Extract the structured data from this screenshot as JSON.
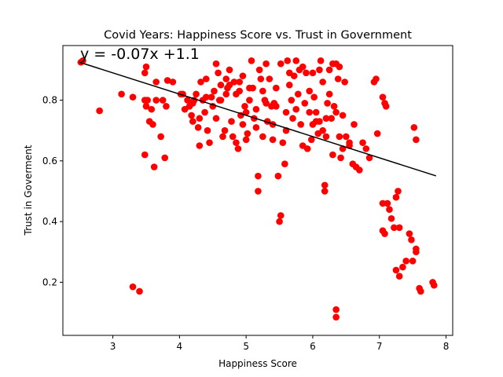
{
  "chart_data": {
    "type": "scatter",
    "title": "Covid Years: Happiness Score vs. Trust in Government",
    "xlabel": "Happiness Score",
    "ylabel": "Trust in Goverment",
    "xlim": [
      2.25,
      8.1
    ],
    "ylim": [
      0.025,
      0.98
    ],
    "xticks": [
      3,
      4,
      5,
      6,
      7,
      8
    ],
    "yticks": [
      0.2,
      0.4,
      0.6,
      0.8
    ],
    "grid": false,
    "marker_color": "#ff0000",
    "line_color": "#000000",
    "regression": {
      "slope": -0.07,
      "intercept": 1.1,
      "x_range": [
        2.5,
        7.85
      ]
    },
    "annotation": "y = -0.07x +1.1",
    "points": [
      [
        2.52,
        0.925
      ],
      [
        2.55,
        0.93
      ],
      [
        2.8,
        0.765
      ],
      [
        3.13,
        0.82
      ],
      [
        3.3,
        0.81
      ],
      [
        3.3,
        0.185
      ],
      [
        3.4,
        0.17
      ],
      [
        3.48,
        0.89
      ],
      [
        3.5,
        0.91
      ],
      [
        3.48,
        0.8
      ],
      [
        3.52,
        0.8
      ],
      [
        3.5,
        0.78
      ],
      [
        3.48,
        0.62
      ],
      [
        3.55,
        0.73
      ],
      [
        3.58,
        0.77
      ],
      [
        3.6,
        0.72
      ],
      [
        3.62,
        0.58
      ],
      [
        3.65,
        0.86
      ],
      [
        3.65,
        0.8
      ],
      [
        3.72,
        0.68
      ],
      [
        3.75,
        0.8
      ],
      [
        3.78,
        0.61
      ],
      [
        3.8,
        0.78
      ],
      [
        3.82,
        0.865
      ],
      [
        3.9,
        0.86
      ],
      [
        4.05,
        0.82
      ],
      [
        4.08,
        0.77
      ],
      [
        4.12,
        0.8
      ],
      [
        4.15,
        0.78
      ],
      [
        4.18,
        0.75
      ],
      [
        4.2,
        0.73
      ],
      [
        4.22,
        0.8
      ],
      [
        4.25,
        0.82
      ],
      [
        4.28,
        0.71
      ],
      [
        4.3,
        0.65
      ],
      [
        4.32,
        0.86
      ],
      [
        4.35,
        0.8
      ],
      [
        4.38,
        0.76
      ],
      [
        4.4,
        0.87
      ],
      [
        4.42,
        0.7
      ],
      [
        4.45,
        0.66
      ],
      [
        4.48,
        0.81
      ],
      [
        4.5,
        0.78
      ],
      [
        4.52,
        0.83
      ],
      [
        4.55,
        0.92
      ],
      [
        4.58,
        0.89
      ],
      [
        4.6,
        0.8
      ],
      [
        4.62,
        0.85
      ],
      [
        4.65,
        0.68
      ],
      [
        4.68,
        0.7
      ],
      [
        4.7,
        0.87
      ],
      [
        4.72,
        0.84
      ],
      [
        4.75,
        0.9
      ],
      [
        4.78,
        0.73
      ],
      [
        4.8,
        0.68
      ],
      [
        4.82,
        0.86
      ],
      [
        4.85,
        0.66
      ],
      [
        4.88,
        0.64
      ],
      [
        4.9,
        0.83
      ],
      [
        4.92,
        0.75
      ],
      [
        4.95,
        0.88
      ],
      [
        4.98,
        0.78
      ],
      [
        5.0,
        0.67
      ],
      [
        5.02,
        0.69
      ],
      [
        5.05,
        0.8
      ],
      [
        5.08,
        0.93
      ],
      [
        5.1,
        0.84
      ],
      [
        5.12,
        0.74
      ],
      [
        5.15,
        0.71
      ],
      [
        5.18,
        0.5
      ],
      [
        5.18,
        0.55
      ],
      [
        5.2,
        0.9
      ],
      [
        5.22,
        0.87
      ],
      [
        5.25,
        0.83
      ],
      [
        5.28,
        0.8
      ],
      [
        5.3,
        0.92
      ],
      [
        5.32,
        0.73
      ],
      [
        5.35,
        0.87
      ],
      [
        5.38,
        0.78
      ],
      [
        5.4,
        0.72
      ],
      [
        5.42,
        0.79
      ],
      [
        5.45,
        0.84
      ],
      [
        5.48,
        0.55
      ],
      [
        5.5,
        0.4
      ],
      [
        5.52,
        0.42
      ],
      [
        5.52,
        0.92
      ],
      [
        5.55,
        0.66
      ],
      [
        5.58,
        0.59
      ],
      [
        5.6,
        0.7
      ],
      [
        5.62,
        0.93
      ],
      [
        5.65,
        0.85
      ],
      [
        5.68,
        0.8
      ],
      [
        5.7,
        0.74
      ],
      [
        5.72,
        0.88
      ],
      [
        5.75,
        0.93
      ],
      [
        5.78,
        0.82
      ],
      [
        5.8,
        0.9
      ],
      [
        5.82,
        0.72
      ],
      [
        5.85,
        0.65
      ],
      [
        5.88,
        0.79
      ],
      [
        5.9,
        0.89
      ],
      [
        5.92,
        0.64
      ],
      [
        5.95,
        0.83
      ],
      [
        5.98,
        0.67
      ],
      [
        6.0,
        0.89
      ],
      [
        6.02,
        0.81
      ],
      [
        6.05,
        0.76
      ],
      [
        6.08,
        0.69
      ],
      [
        6.1,
        0.73
      ],
      [
        6.12,
        0.93
      ],
      [
        6.15,
        0.86
      ],
      [
        6.18,
        0.52
      ],
      [
        6.18,
        0.5
      ],
      [
        6.2,
        0.68
      ],
      [
        6.22,
        0.79
      ],
      [
        6.25,
        0.82
      ],
      [
        6.28,
        0.74
      ],
      [
        6.3,
        0.92
      ],
      [
        6.32,
        0.78
      ],
      [
        6.35,
        0.11
      ],
      [
        6.35,
        0.085
      ],
      [
        6.38,
        0.87
      ],
      [
        6.4,
        0.68
      ],
      [
        6.42,
        0.61
      ],
      [
        6.45,
        0.75
      ],
      [
        6.48,
        0.86
      ],
      [
        6.5,
        0.68
      ],
      [
        6.55,
        0.65
      ],
      [
        6.6,
        0.59
      ],
      [
        6.62,
        0.72
      ],
      [
        6.65,
        0.58
      ],
      [
        6.7,
        0.57
      ],
      [
        6.75,
        0.66
      ],
      [
        6.8,
        0.64
      ],
      [
        6.85,
        0.61
      ],
      [
        6.92,
        0.86
      ],
      [
        6.95,
        0.87
      ],
      [
        6.97,
        0.69
      ],
      [
        7.05,
        0.81
      ],
      [
        7.08,
        0.79
      ],
      [
        7.1,
        0.78
      ],
      [
        7.05,
        0.46
      ],
      [
        7.05,
        0.37
      ],
      [
        7.08,
        0.36
      ],
      [
        7.12,
        0.46
      ],
      [
        7.15,
        0.44
      ],
      [
        7.18,
        0.41
      ],
      [
        7.22,
        0.38
      ],
      [
        7.25,
        0.48
      ],
      [
        7.28,
        0.5
      ],
      [
        7.3,
        0.38
      ],
      [
        7.25,
        0.24
      ],
      [
        7.3,
        0.22
      ],
      [
        7.35,
        0.25
      ],
      [
        7.4,
        0.27
      ],
      [
        7.45,
        0.36
      ],
      [
        7.48,
        0.34
      ],
      [
        7.5,
        0.27
      ],
      [
        7.52,
        0.71
      ],
      [
        7.55,
        0.67
      ],
      [
        7.55,
        0.3
      ],
      [
        7.55,
        0.31
      ],
      [
        7.6,
        0.18
      ],
      [
        7.62,
        0.17
      ],
      [
        7.8,
        0.2
      ],
      [
        7.82,
        0.19
      ],
      [
        4.02,
        0.82
      ],
      [
        4.4,
        0.81
      ],
      [
        4.62,
        0.8
      ],
      [
        4.7,
        0.82
      ],
      [
        4.85,
        0.82
      ],
      [
        4.9,
        0.86
      ],
      [
        5.0,
        0.76
      ],
      [
        5.15,
        0.77
      ],
      [
        5.3,
        0.79
      ],
      [
        5.45,
        0.78
      ],
      [
        5.6,
        0.76
      ],
      [
        5.75,
        0.77
      ],
      [
        5.95,
        0.76
      ],
      [
        6.05,
        0.73
      ],
      [
        6.2,
        0.74
      ],
      [
        6.35,
        0.76
      ],
      [
        5.65,
        0.89
      ],
      [
        5.85,
        0.91
      ],
      [
        6.1,
        0.9
      ],
      [
        6.25,
        0.9
      ],
      [
        6.4,
        0.91
      ],
      [
        6.35,
        0.92
      ],
      [
        5.05,
        0.84
      ],
      [
        4.75,
        0.85
      ],
      [
        4.95,
        0.72
      ],
      [
        5.25,
        0.68
      ],
      [
        5.4,
        0.67
      ],
      [
        6.0,
        0.72
      ],
      [
        6.15,
        0.7
      ],
      [
        6.3,
        0.62
      ],
      [
        6.45,
        0.64
      ],
      [
        4.55,
        0.74
      ],
      [
        4.3,
        0.74
      ],
      [
        4.2,
        0.79
      ],
      [
        6.55,
        0.66
      ]
    ]
  }
}
